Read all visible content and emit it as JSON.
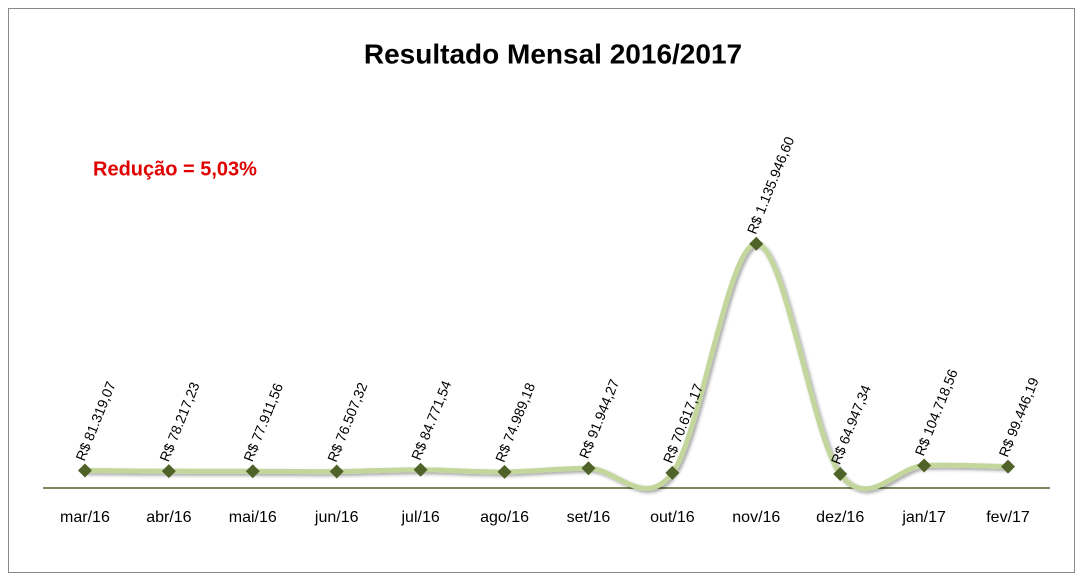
{
  "chart_data": {
    "type": "line",
    "title": "Resultado Mensal 2016/2017",
    "annotation": "Redução = 5,03%",
    "categories": [
      "mar/16",
      "abr/16",
      "mai/16",
      "jun/16",
      "jul/16",
      "ago/16",
      "set/16",
      "out/16",
      "nov/16",
      "dez/16",
      "jan/17",
      "fev/17"
    ],
    "values": [
      81319.07,
      78217.23,
      77911.56,
      76507.32,
      84771.54,
      74989.18,
      91944.27,
      70617.17,
      1135946.6,
      64947.34,
      104718.56,
      99446.19
    ],
    "value_labels": [
      "R$ 81.319,07",
      "R$ 78.217,23",
      "R$ 77.911,56",
      "R$ 76.507,32",
      "R$ 84.771,54",
      "R$ 74.989,18",
      "R$ 91.944,27",
      "R$ 70.617,17",
      "R$ 1.135.946,60",
      "R$ 64.947,34",
      "R$ 104.718,56",
      "R$ 99.446,19"
    ],
    "color": "#c3d69b",
    "marker_color": "#4f6228",
    "ylim": [
      0,
      1200000
    ],
    "smooth": true
  }
}
